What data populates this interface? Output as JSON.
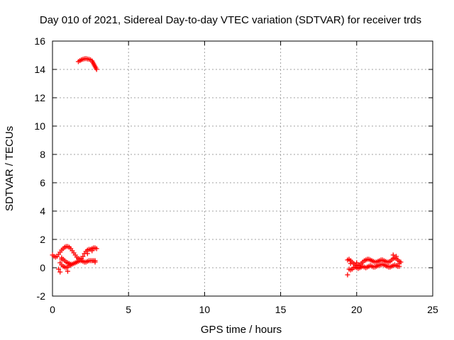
{
  "chart_data": {
    "type": "scatter",
    "title": "Day 010 of 2021, Sidereal Day-to-day VTEC variation (SDTVAR) for receiver trds",
    "xlabel": "GPS time / hours",
    "ylabel": "SDTVAR / TECUs",
    "xlim": [
      0,
      25
    ],
    "ylim": [
      -2,
      16
    ],
    "xticks": [
      0,
      5,
      10,
      15,
      20,
      25
    ],
    "yticks": [
      -2,
      0,
      2,
      4,
      6,
      8,
      10,
      12,
      14,
      16
    ],
    "x_tick_labels": [
      "0",
      "5",
      "10",
      "15",
      "20",
      "25"
    ],
    "y_tick_labels": [
      "-2",
      "0",
      "2",
      "4",
      "6",
      "8",
      "10",
      "12",
      "14",
      "16"
    ],
    "grid": true,
    "legend": "none",
    "marker": "plus",
    "color": "#ff0000",
    "series": [
      {
        "x": [
          1.7,
          1.8,
          1.9,
          2.0,
          2.1,
          2.2,
          2.3,
          2.4,
          2.5,
          2.6,
          2.65,
          2.7,
          2.75,
          2.8,
          2.85,
          2.9
        ],
        "y": [
          14.55,
          14.62,
          14.68,
          14.72,
          14.75,
          14.76,
          14.74,
          14.72,
          14.68,
          14.6,
          14.5,
          14.4,
          14.3,
          14.2,
          14.1,
          14.0
        ]
      },
      {
        "x": [
          0.0,
          0.1,
          0.2,
          0.3,
          0.4,
          0.5,
          0.6,
          0.7,
          0.8,
          0.9,
          1.0,
          1.1,
          1.2,
          1.3,
          1.4,
          1.5,
          1.6,
          1.7,
          1.8,
          1.9,
          2.0,
          2.1,
          2.2,
          2.3,
          2.4,
          2.5,
          2.6,
          2.7,
          2.8,
          2.9,
          0.5,
          0.6,
          0.7,
          0.8,
          0.9,
          1.0,
          1.1,
          1.2,
          1.3,
          1.4,
          1.5,
          1.6,
          1.7,
          1.8,
          1.9,
          2.0,
          2.1,
          2.2,
          2.3,
          2.4,
          2.5,
          2.6,
          2.7,
          2.8,
          0.6,
          0.7,
          0.8,
          0.9,
          1.0,
          1.1,
          1.2,
          0.4,
          0.5,
          1.0,
          0.6,
          2.3,
          2.6,
          2.8
        ],
        "y": [
          0.9,
          0.8,
          0.75,
          0.8,
          0.95,
          1.1,
          1.25,
          1.35,
          1.45,
          1.5,
          1.5,
          1.45,
          1.35,
          1.2,
          1.05,
          0.9,
          0.75,
          0.65,
          0.6,
          0.65,
          0.8,
          1.0,
          1.15,
          1.25,
          1.3,
          1.3,
          1.35,
          1.4,
          1.4,
          1.35,
          0.35,
          0.2,
          0.1,
          0.05,
          0.0,
          0.05,
          0.15,
          0.2,
          0.25,
          0.3,
          0.35,
          0.4,
          0.45,
          0.5,
          0.5,
          0.45,
          0.4,
          0.4,
          0.45,
          0.5,
          0.5,
          0.5,
          0.5,
          0.5,
          0.7,
          0.6,
          0.5,
          0.4,
          0.35,
          0.3,
          0.25,
          -0.1,
          -0.3,
          -0.25,
          0.6,
          1.0,
          1.2,
          0.4
        ]
      },
      {
        "x": [
          19.4,
          19.5,
          19.6,
          19.7,
          19.8,
          19.9,
          20.0,
          20.1,
          20.2,
          20.3,
          20.4,
          20.5,
          20.6,
          20.7,
          20.8,
          20.9,
          21.0,
          21.1,
          21.2,
          21.3,
          21.4,
          21.5,
          21.6,
          21.7,
          21.8,
          21.9,
          22.0,
          22.1,
          22.2,
          22.3,
          22.4,
          22.5,
          22.6,
          22.7,
          22.8,
          22.9,
          19.5,
          19.6,
          19.7,
          19.8,
          19.9,
          20.0,
          20.1,
          20.2,
          20.3,
          20.4,
          20.5,
          20.6,
          20.7,
          20.8,
          20.9,
          21.0,
          21.1,
          21.2,
          21.3,
          21.4,
          21.5,
          21.6,
          21.7,
          21.8,
          21.9,
          22.0,
          22.1,
          22.2,
          22.3,
          22.4,
          22.5,
          22.6,
          22.7,
          22.8,
          19.4,
          19.6,
          20.0,
          22.4,
          22.6,
          22.8
        ],
        "y": [
          0.55,
          0.6,
          0.5,
          0.4,
          0.3,
          0.2,
          0.15,
          0.15,
          0.2,
          0.3,
          0.4,
          0.5,
          0.55,
          0.6,
          0.6,
          0.55,
          0.5,
          0.45,
          0.4,
          0.4,
          0.45,
          0.5,
          0.55,
          0.55,
          0.5,
          0.45,
          0.4,
          0.4,
          0.45,
          0.55,
          0.65,
          0.7,
          0.65,
          0.55,
          0.45,
          0.4,
          -0.1,
          -0.15,
          -0.1,
          0.0,
          0.05,
          0.0,
          -0.05,
          0.0,
          0.05,
          0.1,
          0.05,
          0.0,
          0.05,
          0.1,
          0.15,
          0.1,
          0.05,
          0.05,
          0.1,
          0.15,
          0.2,
          0.2,
          0.25,
          0.2,
          0.15,
          0.1,
          0.05,
          0.05,
          0.1,
          0.15,
          0.2,
          0.15,
          0.1,
          0.1,
          -0.5,
          0.3,
          0.35,
          0.9,
          0.8,
          0.3
        ]
      }
    ]
  }
}
